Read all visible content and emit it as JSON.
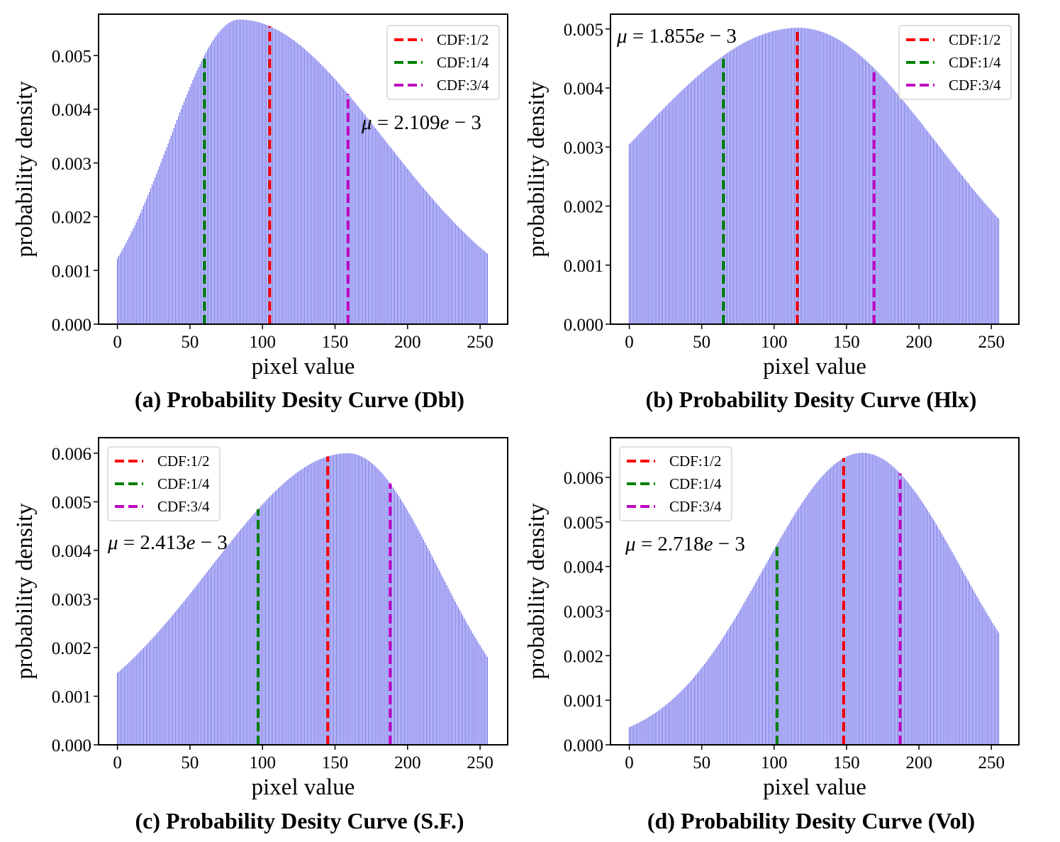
{
  "chart_data": [
    {
      "type": "bar",
      "caption": "(a) Probability Desity Curve (Dbl)",
      "xlabel": "pixel value",
      "ylabel": "probability density",
      "xlim": [
        -13,
        269
      ],
      "ylim": [
        0,
        0.00577
      ],
      "xticks": [
        0,
        50,
        100,
        150,
        200,
        250
      ],
      "yticks": [
        "0.000",
        "0.001",
        "0.002",
        "0.003",
        "0.004",
        "0.005"
      ],
      "curve": {
        "peak_x": 84,
        "peak_y": 0.00567,
        "sigma_left": 48,
        "sigma_right": 100,
        "x_min": 0,
        "x_max": 255
      },
      "bar_color": "#1010dd",
      "mean_label": {
        "mu": "μ",
        "eq": " = 2.109",
        "e": "e",
        "exp": " − 3"
      },
      "legend": {
        "position": "top-right",
        "entries": [
          {
            "label": "CDF:1/2",
            "color": "#ff0000"
          },
          {
            "label": "CDF:1/4",
            "color": "#008000"
          },
          {
            "label": "CDF:3/4",
            "color": "#c000c0"
          }
        ]
      },
      "cdf_lines": [
        {
          "name": "CDF:1/2",
          "x": 105,
          "color": "#ff0000"
        },
        {
          "name": "CDF:1/4",
          "x": 60,
          "color": "#008000"
        },
        {
          "name": "CDF:3/4",
          "x": 159,
          "color": "#c000c0"
        }
      ]
    },
    {
      "type": "bar",
      "caption": "(b) Probability Desity Curve (Hlx)",
      "xlabel": "pixel value",
      "ylabel": "probability density",
      "xlim": [
        -13,
        269
      ],
      "ylim": [
        0,
        0.00525
      ],
      "xticks": [
        0,
        50,
        100,
        150,
        200,
        250
      ],
      "yticks": [
        "0.000",
        "0.001",
        "0.002",
        "0.003",
        "0.004",
        "0.005"
      ],
      "curve": {
        "peak_x": 117,
        "peak_y": 0.00502,
        "sigma_left": 117,
        "sigma_right": 96,
        "x_min": 0,
        "x_max": 255
      },
      "bar_color": "#1010dd",
      "mean_label": {
        "mu": "μ",
        "eq": " = 1.855",
        "e": "e",
        "exp": " − 3"
      },
      "legend": {
        "position": "top-right",
        "entries": [
          {
            "label": "CDF:1/2",
            "color": "#ff0000"
          },
          {
            "label": "CDF:1/4",
            "color": "#008000"
          },
          {
            "label": "CDF:3/4",
            "color": "#c000c0"
          }
        ]
      },
      "cdf_lines": [
        {
          "name": "CDF:1/2",
          "x": 116,
          "color": "#ff0000"
        },
        {
          "name": "CDF:1/4",
          "x": 65,
          "color": "#008000"
        },
        {
          "name": "CDF:3/4",
          "x": 169,
          "color": "#c000c0"
        }
      ]
    },
    {
      "type": "bar",
      "caption": "(c) Probability Desity Curve (S.F.)",
      "xlabel": "pixel value",
      "ylabel": "probability density",
      "xlim": [
        -13,
        269
      ],
      "ylim": [
        0,
        0.00632
      ],
      "xticks": [
        0,
        50,
        100,
        150,
        200,
        250
      ],
      "yticks": [
        "0.000",
        "0.001",
        "0.002",
        "0.003",
        "0.004",
        "0.005",
        "0.006"
      ],
      "curve": {
        "peak_x": 159,
        "peak_y": 0.006,
        "sigma_left": 95,
        "sigma_right": 62,
        "x_min": 0,
        "x_max": 255
      },
      "bar_color": "#1010dd",
      "mean_label": {
        "mu": "μ",
        "eq": " = 2.413",
        "e": "e",
        "exp": " − 3"
      },
      "legend": {
        "position": "top-left",
        "entries": [
          {
            "label": "CDF:1/2",
            "color": "#ff0000"
          },
          {
            "label": "CDF:1/4",
            "color": "#008000"
          },
          {
            "label": "CDF:3/4",
            "color": "#c000c0"
          }
        ]
      },
      "cdf_lines": [
        {
          "name": "CDF:1/2",
          "x": 145,
          "color": "#ff0000"
        },
        {
          "name": "CDF:1/4",
          "x": 97,
          "color": "#008000"
        },
        {
          "name": "CDF:3/4",
          "x": 188,
          "color": "#c000c0"
        }
      ]
    },
    {
      "type": "bar",
      "caption": "(d) Probability Desity Curve (Vol)",
      "xlabel": "pixel value",
      "ylabel": "probability density",
      "xlim": [
        -13,
        269
      ],
      "ylim": [
        0,
        0.00689
      ],
      "xticks": [
        0,
        50,
        100,
        150,
        200,
        250
      ],
      "yticks": [
        "0.000",
        "0.001",
        "0.002",
        "0.003",
        "0.004",
        "0.005",
        "0.006"
      ],
      "curve": {
        "peak_x": 161,
        "peak_y": 0.00655,
        "sigma_left": 68,
        "sigma_right": 68,
        "x_min": 0,
        "x_max": 255
      },
      "bar_color": "#1010dd",
      "mean_label": {
        "mu": "μ",
        "eq": " = 2.718",
        "e": "e",
        "exp": " − 3"
      },
      "legend": {
        "position": "top-left",
        "entries": [
          {
            "label": "CDF:1/2",
            "color": "#ff0000"
          },
          {
            "label": "CDF:1/4",
            "color": "#008000"
          },
          {
            "label": "CDF:3/4",
            "color": "#c000c0"
          }
        ]
      },
      "cdf_lines": [
        {
          "name": "CDF:1/2",
          "x": 148,
          "color": "#ff0000"
        },
        {
          "name": "CDF:1/4",
          "x": 102,
          "color": "#008000"
        },
        {
          "name": "CDF:3/4",
          "x": 187,
          "color": "#c000c0"
        }
      ]
    }
  ]
}
